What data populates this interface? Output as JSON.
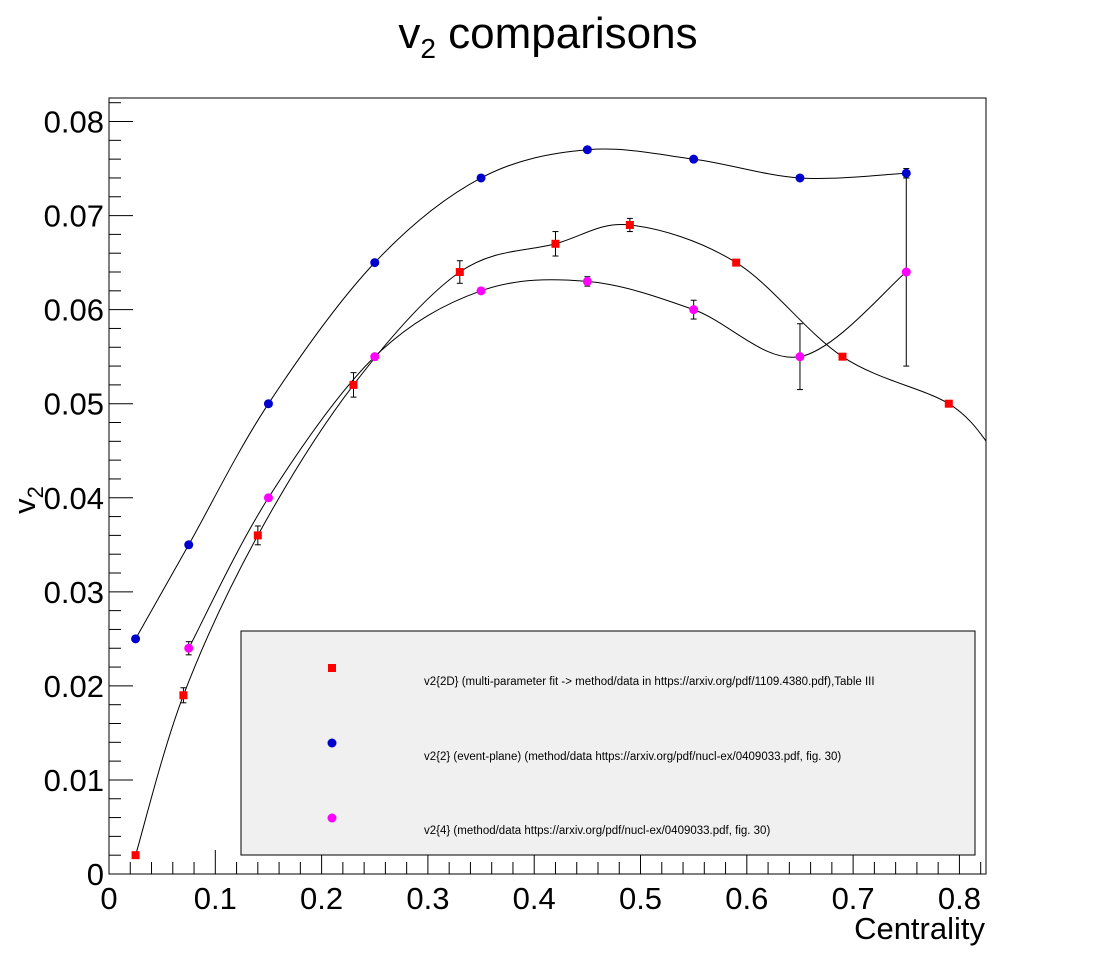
{
  "title": {
    "main": "v",
    "sub": "2",
    "rest": " comparisons"
  },
  "chart_data": {
    "type": "scatter",
    "title": "v2 comparisons",
    "xlabel": "Centrality",
    "ylabel": {
      "main": "v",
      "sub": "2"
    },
    "xlim": [
      0,
      0.825
    ],
    "ylim": [
      0,
      0.0825
    ],
    "x_ticks": [
      "0",
      "0.1",
      "0.2",
      "0.3",
      "0.4",
      "0.5",
      "0.6",
      "0.7",
      "0.8"
    ],
    "y_ticks": [
      "0",
      "0.01",
      "0.02",
      "0.03",
      "0.04",
      "0.05",
      "0.06",
      "0.07",
      "0.08"
    ],
    "grid": false,
    "legend_position": "bottom-right",
    "series": [
      {
        "name": "v2{2D} (multi-parameter fit -> method/data in https://arxiv.org/pdf/1109.4380.pdf),Table III",
        "marker": "square",
        "color": "#ff0000",
        "x": [
          0.025,
          0.07,
          0.14,
          0.23,
          0.33,
          0.42,
          0.49,
          0.59,
          0.69,
          0.79
        ],
        "y": [
          0.002,
          0.019,
          0.036,
          0.052,
          0.064,
          0.067,
          0.069,
          0.065,
          0.055,
          0.05
        ],
        "err": [
          0,
          0.0008,
          0.001,
          0.0013,
          0.0012,
          0.0013,
          0.0007,
          0,
          0,
          0
        ]
      },
      {
        "name": "v2{2} (event-plane) (method/data https://arxiv.org/pdf/nucl-ex/0409033.pdf, fig. 30)",
        "marker": "circle",
        "color": "#0000cc",
        "x": [
          0.025,
          0.075,
          0.15,
          0.25,
          0.35,
          0.45,
          0.55,
          0.65,
          0.75
        ],
        "y": [
          0.025,
          0.035,
          0.05,
          0.065,
          0.074,
          0.077,
          0.076,
          0.074,
          0.0745
        ],
        "err": [
          0,
          0,
          0,
          0,
          0,
          0,
          0,
          0,
          0.0005
        ]
      },
      {
        "name": "v2{4} (method/data https://arxiv.org/pdf/nucl-ex/0409033.pdf, fig. 30)",
        "marker": "circle",
        "color": "#ff00ff",
        "x": [
          0.075,
          0.15,
          0.25,
          0.35,
          0.45,
          0.55,
          0.65,
          0.75
        ],
        "y": [
          0.024,
          0.04,
          0.055,
          0.062,
          0.063,
          0.06,
          0.055,
          0.064
        ],
        "err": [
          0.0007,
          0,
          0,
          0,
          0.0005,
          0.001,
          0.0035,
          0.01
        ]
      }
    ]
  }
}
